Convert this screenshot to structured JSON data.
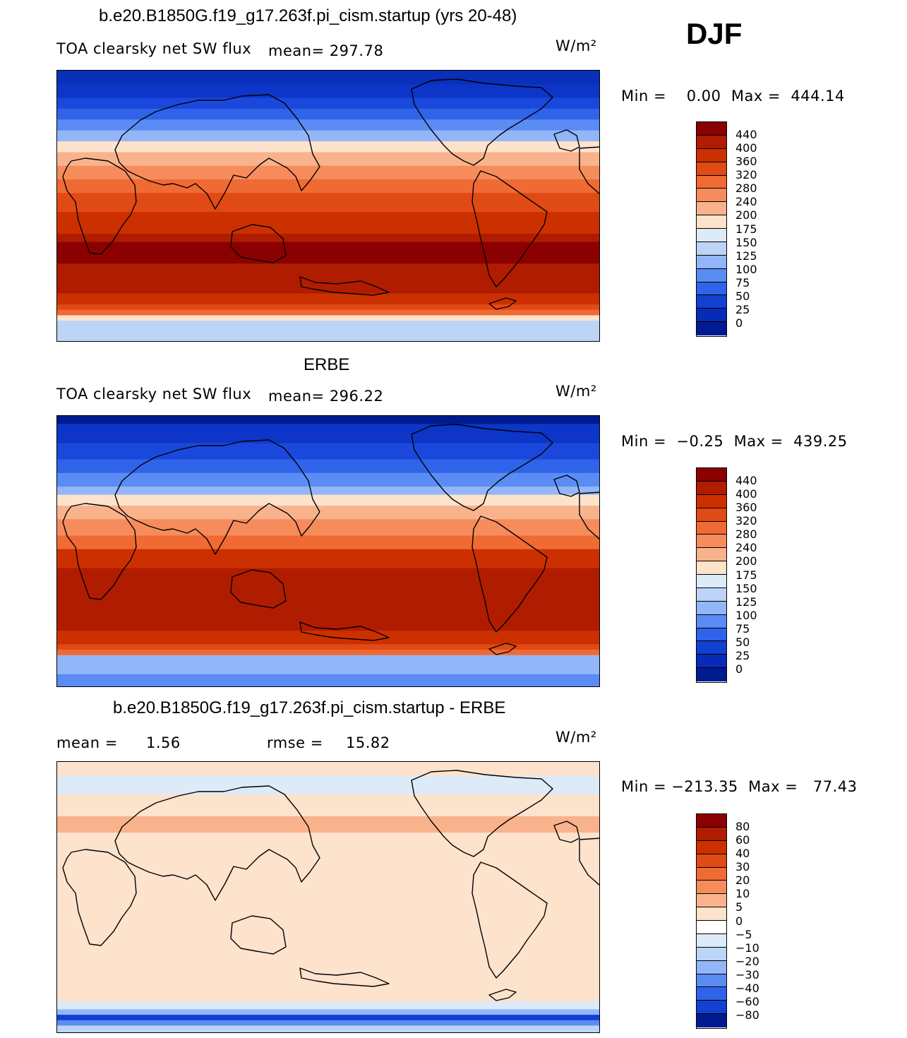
{
  "season": "DJF",
  "panels": [
    {
      "title": "b.e20.B1850G.f19_g17.263f.pi_cism.startup (yrs 20-48)",
      "variable": "TOA clearsky net SW flux",
      "stat": "mean=  297.78",
      "units": "W/m²",
      "minmax": "Min =    0.00  Max =  444.14",
      "colorbar": {
        "labels": [
          "440",
          "400",
          "360",
          "320",
          "280",
          "240",
          "200",
          "175",
          "150",
          "125",
          "100",
          "75",
          "50",
          "25",
          "0"
        ],
        "colors": [
          "#8b0000",
          "#b01c00",
          "#cd3000",
          "#e04a14",
          "#f06a34",
          "#f68c5c",
          "#f9b38c",
          "#fde2cc",
          "#ddeaf8",
          "#bcd4f6",
          "#93b6f8",
          "#5a8cf4",
          "#2f64ea",
          "#1240d0",
          "#072bb8",
          "#001a90"
        ]
      },
      "zones": [
        [
          0.0,
          "#0a2fb8"
        ],
        [
          0.05,
          "#0d36c8"
        ],
        [
          0.1,
          "#1b48dc"
        ],
        [
          0.14,
          "#2f64ea"
        ],
        [
          0.18,
          "#5a8cf4"
        ],
        [
          0.22,
          "#93b6f8"
        ],
        [
          0.26,
          "#fde2cc"
        ],
        [
          0.3,
          "#f9b38c"
        ],
        [
          0.35,
          "#f68c5c"
        ],
        [
          0.4,
          "#f06a34"
        ],
        [
          0.45,
          "#e04a14"
        ],
        [
          0.52,
          "#cd3000"
        ],
        [
          0.6,
          "#b01c00"
        ],
        [
          0.63,
          "#8b0000"
        ],
        [
          0.71,
          "#b01c00"
        ],
        [
          0.82,
          "#cd3000"
        ],
        [
          0.86,
          "#e04a14"
        ],
        [
          0.88,
          "#f06a34"
        ],
        [
          0.9,
          "#fde2cc"
        ],
        [
          0.92,
          "#bcd4f6"
        ],
        [
          1.0,
          "#bcd4f6"
        ]
      ]
    },
    {
      "title": "ERBE",
      "variable": "TOA clearsky net SW flux",
      "stat": "mean=  296.22",
      "units": "W/m²",
      "minmax": "Min =  −0.25  Max =  439.25",
      "colorbar": {
        "labels": [
          "440",
          "400",
          "360",
          "320",
          "280",
          "240",
          "200",
          "175",
          "150",
          "125",
          "100",
          "75",
          "50",
          "25",
          "0"
        ],
        "colors": [
          "#8b0000",
          "#b01c00",
          "#cd3000",
          "#e04a14",
          "#f06a34",
          "#f68c5c",
          "#f9b38c",
          "#fde2cc",
          "#ddeaf8",
          "#bcd4f6",
          "#93b6f8",
          "#5a8cf4",
          "#2f64ea",
          "#1240d0",
          "#072bb8",
          "#001a90"
        ]
      },
      "zones": [
        [
          0.0,
          "#001a90"
        ],
        [
          0.03,
          "#0d36c8"
        ],
        [
          0.1,
          "#1b48dc"
        ],
        [
          0.16,
          "#2f64ea"
        ],
        [
          0.21,
          "#5a8cf4"
        ],
        [
          0.26,
          "#93b6f8"
        ],
        [
          0.29,
          "#fde2cc"
        ],
        [
          0.33,
          "#f9b38c"
        ],
        [
          0.38,
          "#f68c5c"
        ],
        [
          0.44,
          "#f06a34"
        ],
        [
          0.49,
          "#cd3000"
        ],
        [
          0.56,
          "#b01c00"
        ],
        [
          0.79,
          "#cd3000"
        ],
        [
          0.84,
          "#e04a14"
        ],
        [
          0.86,
          "#f06a34"
        ],
        [
          0.88,
          "#93b6f8"
        ],
        [
          0.95,
          "#5a8cf4"
        ],
        [
          1.0,
          "#5a8cf4"
        ]
      ]
    },
    {
      "title": "b.e20.B1850G.f19_g17.263f.pi_cism.startup - ERBE",
      "mean_label": "mean =",
      "mean_value": "1.56",
      "rmse_label": "rmse =",
      "rmse_value": "15.82",
      "units": "W/m²",
      "minmax": "Min = −213.35  Max =   77.43",
      "colorbar": {
        "labels": [
          "80",
          "60",
          "40",
          "30",
          "20",
          "10",
          "5",
          "0",
          "−5",
          "−10",
          "−20",
          "−30",
          "−40",
          "−60",
          "−80"
        ],
        "colors": [
          "#8b0000",
          "#b01c00",
          "#cd3000",
          "#e04a14",
          "#f06a34",
          "#f68c5c",
          "#f9b38c",
          "#fde2cc",
          "#ffffff",
          "#ddeaf8",
          "#bcd4f6",
          "#93b6f8",
          "#5a8cf4",
          "#2f64ea",
          "#1240d0",
          "#001a90"
        ]
      },
      "zones": [
        [
          0.0,
          "#fde2cc"
        ],
        [
          0.05,
          "#ddeaf8"
        ],
        [
          0.12,
          "#fde2cc"
        ],
        [
          0.2,
          "#f9b38c"
        ],
        [
          0.26,
          "#fde2cc"
        ],
        [
          0.88,
          "#ddeaf8"
        ],
        [
          0.91,
          "#93b6f8"
        ],
        [
          0.93,
          "#1240d0"
        ],
        [
          0.95,
          "#5a8cf4"
        ],
        [
          0.97,
          "#bcd4f6"
        ],
        [
          1.0,
          "#bcd4f6"
        ]
      ]
    }
  ]
}
